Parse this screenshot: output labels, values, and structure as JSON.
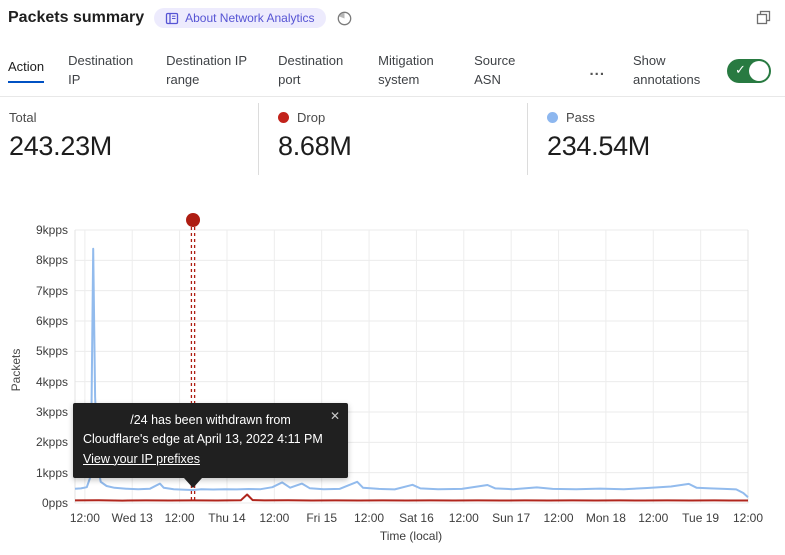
{
  "header": {
    "title": "Packets summary",
    "badge": {
      "label": "About Network Analytics",
      "icon": "book-icon"
    },
    "time_icon": "clock-icon",
    "copy_icon": "copy-icon"
  },
  "tabs": {
    "items": [
      {
        "label": "Action",
        "active": true
      },
      {
        "label": "Destination IP",
        "active": false
      },
      {
        "label": "Destination IP range",
        "active": false
      },
      {
        "label": "Destination port",
        "active": false
      },
      {
        "label": "Mitigation system",
        "active": false
      },
      {
        "label": "Source ASN",
        "active": false
      }
    ],
    "more_label": "...",
    "annotations_toggle": {
      "label": "Show annotations",
      "state": "on",
      "color": "#287a41",
      "check": "✓"
    }
  },
  "stats": [
    {
      "label": "Total",
      "value": "243.23M",
      "dot_color": ""
    },
    {
      "label": "Drop",
      "value": "8.68M",
      "dot_color": "#c2231b"
    },
    {
      "label": "Pass",
      "value": "234.54M",
      "dot_color": "#8db7ef"
    }
  ],
  "chart_data": {
    "type": "line",
    "title": "Packets summary",
    "ylabel": "Packets",
    "xlabel": "Time (local)",
    "ylim": [
      0,
      9000
    ],
    "grid": true,
    "x_range_hours": [
      0,
      170.5
    ],
    "x_ticks": {
      "first_tick_hour": 2.5,
      "interval_hours": 12,
      "labels": [
        "12:00",
        "Wed 13",
        "12:00",
        "Thu 14",
        "12:00",
        "Fri 15",
        "12:00",
        "Sat 16",
        "12:00",
        "Sun 17",
        "12:00",
        "Mon 18",
        "12:00",
        "Tue 19",
        "12:00"
      ]
    },
    "y_ticks": {
      "values": [
        0,
        1000,
        2000,
        3000,
        4000,
        5000,
        6000,
        7000,
        8000,
        9000
      ],
      "labels": [
        "0pps",
        "1kpps",
        "2kpps",
        "3kpps",
        "4kpps",
        "5kpps",
        "6kpps",
        "7kpps",
        "8kpps",
        "9kpps"
      ]
    },
    "series": [
      {
        "name": "Pass",
        "color": "#92bbed",
        "points": [
          [
            0,
            470
          ],
          [
            1.5,
            480
          ],
          [
            3,
            520
          ],
          [
            4.0,
            900
          ],
          [
            4.6,
            8380
          ],
          [
            5.1,
            3500
          ],
          [
            5.4,
            2600
          ],
          [
            5.8,
            1200
          ],
          [
            6.5,
            700
          ],
          [
            8,
            560
          ],
          [
            10,
            500
          ],
          [
            13,
            470
          ],
          [
            16,
            455
          ],
          [
            19,
            470
          ],
          [
            21.5,
            640
          ],
          [
            22.5,
            500
          ],
          [
            25,
            455
          ],
          [
            28,
            440
          ],
          [
            29.9,
            430
          ],
          [
            32,
            455
          ],
          [
            35,
            445
          ],
          [
            38,
            455
          ],
          [
            41,
            450
          ],
          [
            44,
            460
          ],
          [
            47,
            455
          ],
          [
            50,
            520
          ],
          [
            52.5,
            680
          ],
          [
            54.5,
            505
          ],
          [
            57.5,
            640
          ],
          [
            59.5,
            485
          ],
          [
            63,
            455
          ],
          [
            67,
            465
          ],
          [
            71.5,
            700
          ],
          [
            73,
            500
          ],
          [
            77,
            465
          ],
          [
            81,
            450
          ],
          [
            85.5,
            600
          ],
          [
            87.5,
            480
          ],
          [
            92,
            455
          ],
          [
            98,
            465
          ],
          [
            104.5,
            595
          ],
          [
            106.5,
            480
          ],
          [
            111,
            455
          ],
          [
            117,
            515
          ],
          [
            121,
            465
          ],
          [
            127,
            455
          ],
          [
            133,
            475
          ],
          [
            139,
            455
          ],
          [
            145,
            495
          ],
          [
            151,
            545
          ],
          [
            155.5,
            630
          ],
          [
            157.5,
            500
          ],
          [
            161,
            480
          ],
          [
            164.5,
            465
          ],
          [
            167.5,
            450
          ],
          [
            169.3,
            330
          ],
          [
            170.5,
            190
          ]
        ]
      },
      {
        "name": "Drop",
        "color": "#b0261d",
        "points": [
          [
            0,
            85
          ],
          [
            6,
            88
          ],
          [
            12,
            80
          ],
          [
            18,
            86
          ],
          [
            24,
            82
          ],
          [
            30,
            86
          ],
          [
            36,
            84
          ],
          [
            42,
            88
          ],
          [
            43.6,
            280
          ],
          [
            45,
            96
          ],
          [
            48,
            86
          ],
          [
            54,
            88
          ],
          [
            60,
            83
          ],
          [
            66,
            86
          ],
          [
            72,
            84
          ],
          [
            78,
            87
          ],
          [
            84,
            83
          ],
          [
            90,
            86
          ],
          [
            96,
            84
          ],
          [
            102,
            87
          ],
          [
            108,
            84
          ],
          [
            114,
            86
          ],
          [
            120,
            84
          ],
          [
            126,
            86
          ],
          [
            132,
            84
          ],
          [
            138,
            86
          ],
          [
            144,
            84
          ],
          [
            150,
            86
          ],
          [
            156,
            84
          ],
          [
            162,
            86
          ],
          [
            166,
            84
          ],
          [
            170.5,
            82
          ]
        ]
      }
    ],
    "annotation": {
      "hour": 29.9,
      "color": "#ae1d12",
      "tooltip": {
        "line1": "/24 has been withdrawn from",
        "line2": "Cloudflare's edge at April 13, 2022 4:11 PM",
        "link": "View your IP prefixes",
        "close_icon": "✕"
      }
    }
  }
}
